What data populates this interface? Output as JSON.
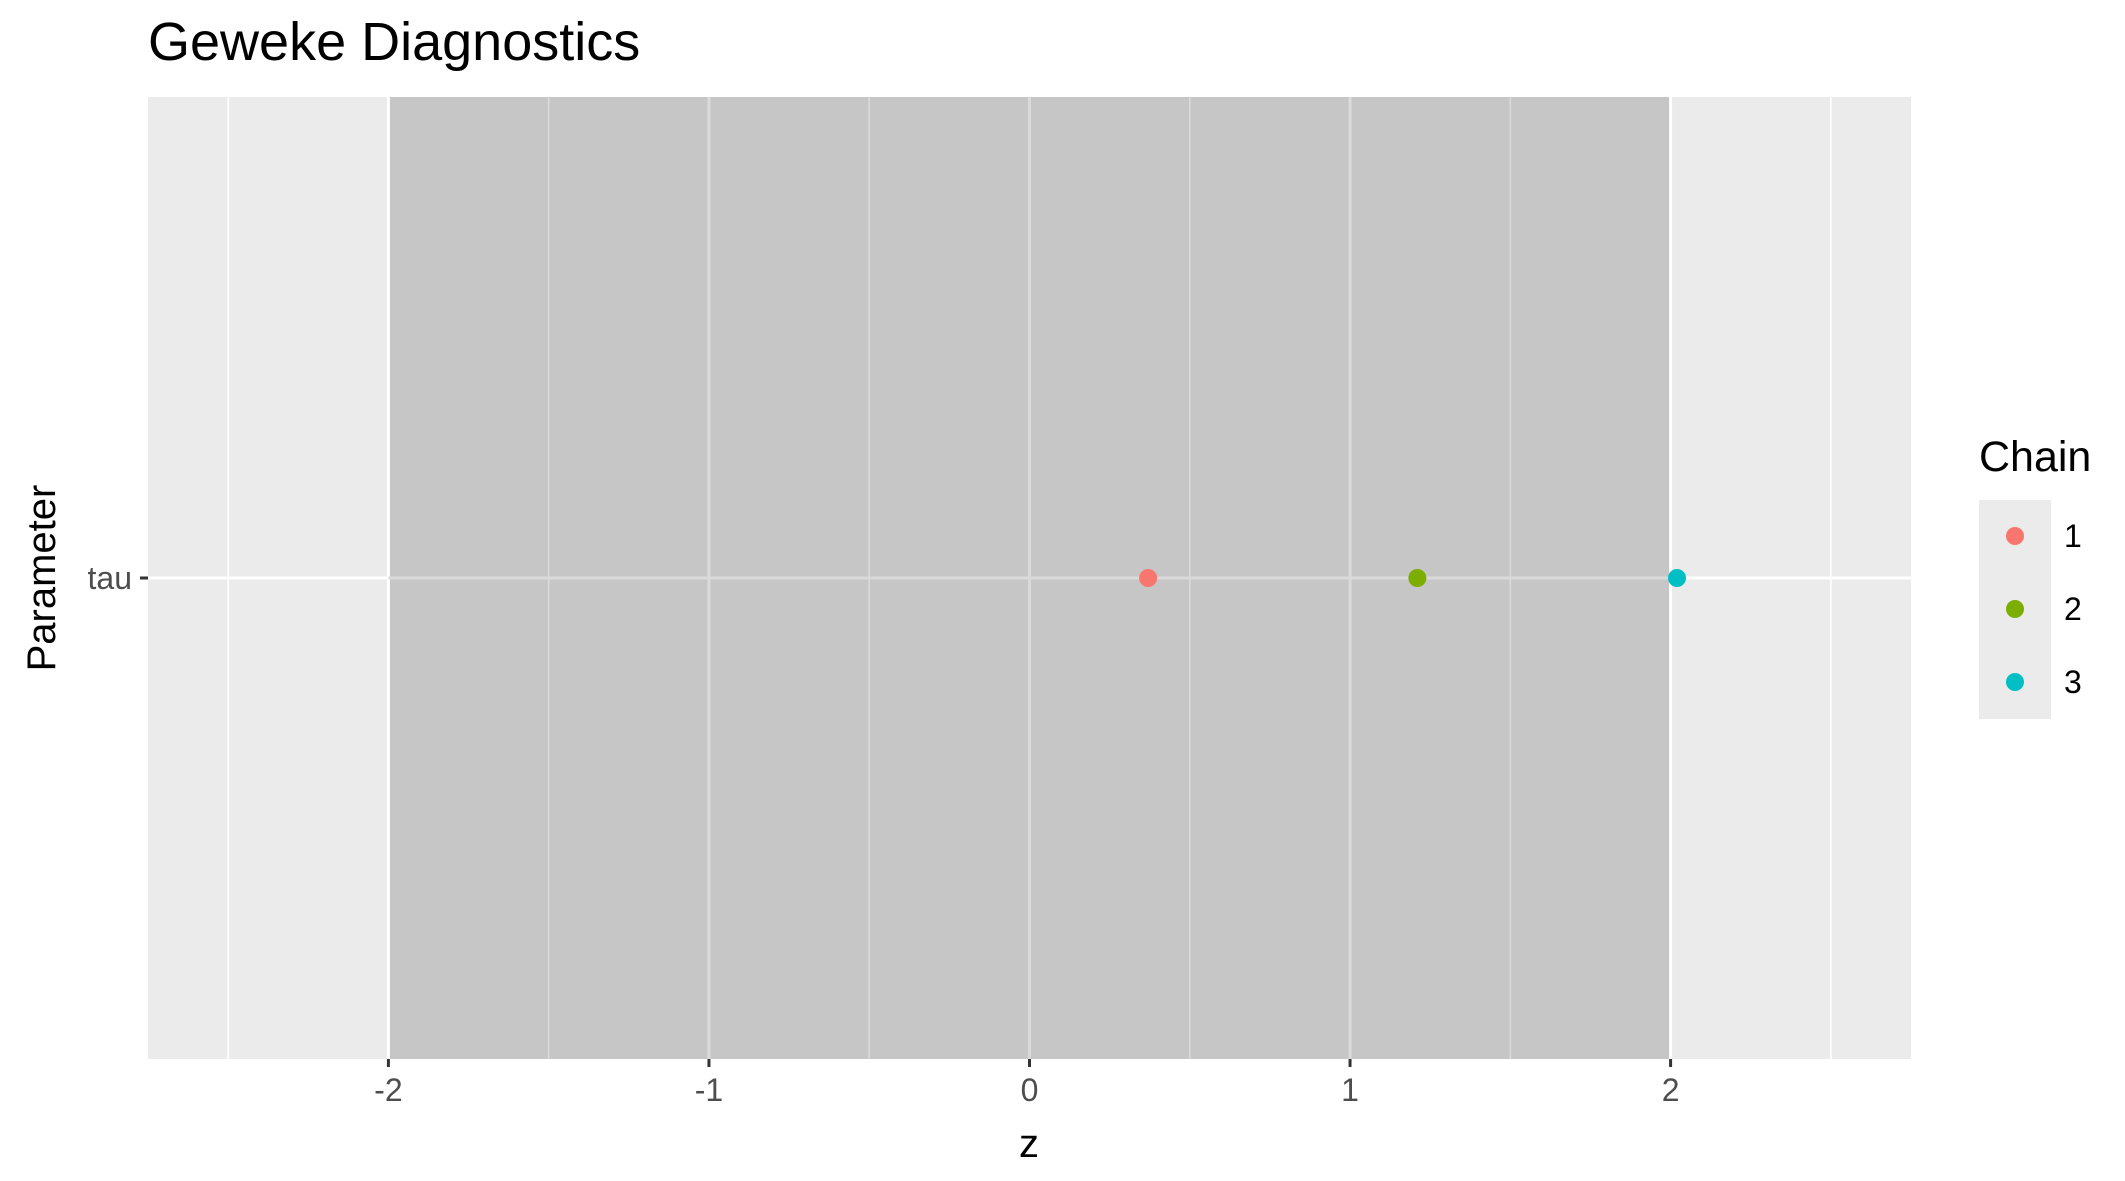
{
  "chart_data": {
    "type": "scatter",
    "title": "Geweke Diagnostics",
    "xlabel": "z",
    "ylabel": "Parameter",
    "xlim": [
      -2.75,
      2.75
    ],
    "x_ticks": [
      -2,
      -1,
      0,
      1,
      2
    ],
    "y_categories": [
      "tau"
    ],
    "band": {
      "from": -2,
      "to": 2,
      "color": "#c6c6c6"
    },
    "panel_background": "#ebebeb",
    "grid": true,
    "legend": {
      "title": "Chain",
      "position": "right"
    },
    "series": [
      {
        "name": "1",
        "color": "#f8766d",
        "points": [
          {
            "x": 0.37,
            "y": "tau"
          }
        ]
      },
      {
        "name": "2",
        "color": "#7cae00",
        "points": [
          {
            "x": 1.21,
            "y": "tau"
          }
        ]
      },
      {
        "name": "3",
        "color": "#00bfc4",
        "points": [
          {
            "x": 2.02,
            "y": "tau"
          }
        ]
      }
    ]
  }
}
